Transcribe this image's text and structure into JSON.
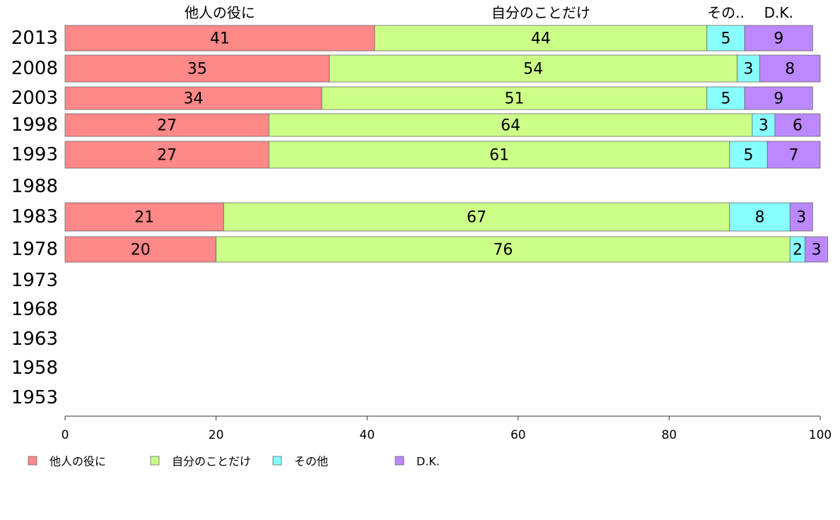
{
  "chart_data": {
    "type": "bar",
    "orientation": "horizontal",
    "stacked": true,
    "categories": [
      "2013",
      "2008",
      "2003",
      "1998",
      "1993",
      "1988",
      "1983",
      "1978",
      "1973",
      "1968",
      "1963",
      "1958",
      "1953"
    ],
    "series": [
      {
        "name": "他人の役に",
        "color": "#ff8888",
        "values": [
          41,
          35,
          34,
          27,
          27,
          null,
          21,
          20,
          null,
          null,
          null,
          null,
          null
        ]
      },
      {
        "name": "自分のことだけ",
        "color": "#ccff88",
        "values": [
          44,
          54,
          51,
          64,
          61,
          null,
          67,
          76,
          null,
          null,
          null,
          null,
          null
        ]
      },
      {
        "name": "その他",
        "color": "#88ffff",
        "values": [
          5,
          3,
          5,
          3,
          5,
          null,
          8,
          2,
          null,
          null,
          null,
          null,
          null
        ]
      },
      {
        "name": "D.K.",
        "color": "#bb88ff",
        "values": [
          9,
          8,
          9,
          6,
          7,
          null,
          3,
          3,
          null,
          null,
          null,
          null,
          null
        ]
      }
    ],
    "column_headers": [
      "他人の役に",
      "自分のことだけ",
      "その..",
      "D.K."
    ],
    "xlim": [
      0,
      100
    ],
    "xticks": [
      "0",
      "20",
      "40",
      "60",
      "80",
      "100"
    ],
    "grid": false,
    "legend_position": "bottom-left"
  }
}
